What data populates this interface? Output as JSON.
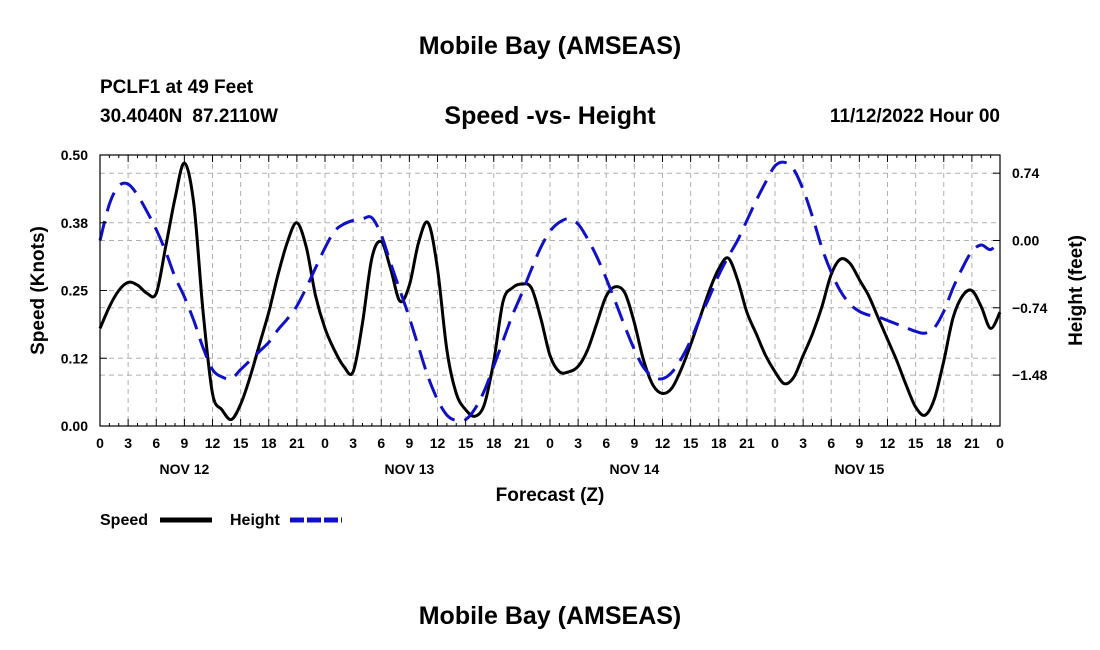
{
  "header": {
    "title": "Mobile Bay (AMSEAS)",
    "station": "PCLF1 at 49 Feet",
    "lat": "30.4040N",
    "lon": "87.2110W",
    "subtitle": "Speed -vs- Height",
    "datetime": "11/12/2022 Hour 00"
  },
  "footer": {
    "title": "Mobile Bay (AMSEAS)"
  },
  "colors": {
    "speed": "#000000",
    "height": "#1010c8",
    "grid": "#b0b0b0"
  },
  "chart_data": {
    "type": "line",
    "title": "Speed -vs- Height",
    "xlabel": "Forecast (Z)",
    "ylabel": "Speed (Knots)",
    "y2label": "Height (feet)",
    "xlim": [
      0,
      96
    ],
    "ylim": [
      0,
      0.5
    ],
    "y2lim": [
      -2.04,
      0.94
    ],
    "grid": true,
    "legend_position": "bottom-left",
    "x_ticks": [
      0,
      3,
      6,
      9,
      12,
      15,
      18,
      21,
      24,
      27,
      30,
      33,
      36,
      39,
      42,
      45,
      48,
      51,
      54,
      57,
      60,
      63,
      66,
      69,
      72,
      75,
      78,
      81,
      84,
      87,
      90,
      93,
      96
    ],
    "x_tick_labels": [
      "0",
      "3",
      "6",
      "9",
      "12",
      "15",
      "18",
      "21",
      "0",
      "3",
      "6",
      "9",
      "12",
      "15",
      "18",
      "21",
      "0",
      "3",
      "6",
      "9",
      "12",
      "15",
      "18",
      "21",
      "0",
      "3",
      "6",
      "9",
      "12",
      "15",
      "18",
      "21",
      "0"
    ],
    "date_labels": [
      {
        "label": "NOV 12",
        "x": 9
      },
      {
        "label": "NOV 13",
        "x": 33
      },
      {
        "label": "NOV 14",
        "x": 57
      },
      {
        "label": "NOV 15",
        "x": 81
      }
    ],
    "y_ticks": [
      0,
      0.125,
      0.25,
      0.375,
      0.5
    ],
    "y_tick_labels": [
      "0.00",
      "0.12",
      "0.25",
      "0.38",
      "0.50"
    ],
    "y2_ticks": [
      0.74,
      0.0,
      -0.74,
      -1.48
    ],
    "y2_tick_labels": [
      "0.74",
      "0.00",
      "−0.74",
      "−1.48"
    ],
    "series": [
      {
        "name": "Speed",
        "axis": "left",
        "x": [
          0,
          1,
          2,
          3,
          4,
          5,
          6,
          7,
          8,
          9,
          10,
          11,
          12,
          13,
          14,
          15,
          16,
          17,
          18,
          19,
          20,
          21,
          22,
          23,
          24,
          25,
          26,
          27,
          28,
          29,
          30,
          31,
          32,
          33,
          34,
          35,
          36,
          37,
          38,
          39,
          40,
          41,
          42,
          43,
          44,
          45,
          46,
          47,
          48,
          49,
          50,
          51,
          52,
          53,
          54,
          55,
          56,
          57,
          58,
          59,
          60,
          61,
          62,
          63,
          64,
          65,
          66,
          67,
          68,
          69,
          70,
          71,
          72,
          73,
          74,
          75,
          76,
          77,
          78,
          79,
          80,
          81,
          82,
          83,
          84,
          85,
          86,
          87,
          88,
          89,
          90,
          91,
          92,
          93,
          94,
          95,
          96
        ],
        "values": [
          0.18,
          0.22,
          0.25,
          0.265,
          0.26,
          0.245,
          0.245,
          0.33,
          0.42,
          0.485,
          0.41,
          0.21,
          0.06,
          0.03,
          0.012,
          0.04,
          0.09,
          0.15,
          0.21,
          0.28,
          0.34,
          0.375,
          0.33,
          0.24,
          0.18,
          0.14,
          0.11,
          0.1,
          0.19,
          0.31,
          0.34,
          0.29,
          0.23,
          0.26,
          0.34,
          0.375,
          0.29,
          0.14,
          0.06,
          0.03,
          0.018,
          0.04,
          0.12,
          0.23,
          0.255,
          0.262,
          0.255,
          0.2,
          0.13,
          0.1,
          0.1,
          0.11,
          0.14,
          0.19,
          0.24,
          0.257,
          0.245,
          0.19,
          0.12,
          0.075,
          0.06,
          0.07,
          0.105,
          0.15,
          0.2,
          0.25,
          0.29,
          0.31,
          0.27,
          0.21,
          0.17,
          0.13,
          0.1,
          0.078,
          0.09,
          0.13,
          0.17,
          0.22,
          0.28,
          0.308,
          0.3,
          0.27,
          0.24,
          0.2,
          0.16,
          0.12,
          0.075,
          0.035,
          0.02,
          0.05,
          0.12,
          0.2,
          0.24,
          0.25,
          0.22,
          0.18,
          0.21
        ]
      },
      {
        "name": "Height",
        "axis": "right",
        "x": [
          0,
          1,
          2,
          3,
          4,
          5,
          6,
          7,
          8,
          9,
          10,
          11,
          12,
          13,
          14,
          15,
          16,
          17,
          18,
          19,
          20,
          21,
          22,
          23,
          24,
          25,
          26,
          27,
          28,
          29,
          30,
          31,
          32,
          33,
          34,
          35,
          36,
          37,
          38,
          39,
          40,
          41,
          42,
          43,
          44,
          45,
          46,
          47,
          48,
          49,
          50,
          51,
          52,
          53,
          54,
          55,
          56,
          57,
          58,
          59,
          60,
          61,
          62,
          63,
          64,
          65,
          66,
          67,
          68,
          69,
          70,
          71,
          72,
          73,
          74,
          75,
          76,
          77,
          78,
          79,
          80,
          81,
          82,
          83,
          84,
          85,
          86,
          87,
          88,
          89,
          90,
          91,
          92,
          93,
          94,
          95,
          96
        ],
        "values": [
          0.0,
          0.4,
          0.6,
          0.62,
          0.5,
          0.32,
          0.12,
          -0.12,
          -0.4,
          -0.62,
          -0.88,
          -1.18,
          -1.42,
          -1.5,
          -1.52,
          -1.42,
          -1.32,
          -1.22,
          -1.12,
          -0.98,
          -0.86,
          -0.72,
          -0.52,
          -0.3,
          -0.08,
          0.1,
          0.18,
          0.22,
          0.24,
          0.25,
          0.06,
          -0.25,
          -0.55,
          -0.85,
          -1.18,
          -1.5,
          -1.75,
          -1.92,
          -1.98,
          -1.97,
          -1.85,
          -1.65,
          -1.38,
          -1.1,
          -0.82,
          -0.58,
          -0.32,
          -0.08,
          0.1,
          0.2,
          0.24,
          0.18,
          0.02,
          -0.18,
          -0.42,
          -0.68,
          -0.95,
          -1.2,
          -1.4,
          -1.5,
          -1.52,
          -1.45,
          -1.3,
          -1.1,
          -0.85,
          -0.62,
          -0.38,
          -0.18,
          0.0,
          0.22,
          0.44,
          0.64,
          0.82,
          0.86,
          0.78,
          0.56,
          0.26,
          -0.08,
          -0.35,
          -0.56,
          -0.7,
          -0.78,
          -0.82,
          -0.84,
          -0.88,
          -0.92,
          -0.96,
          -1.0,
          -1.02,
          -0.96,
          -0.78,
          -0.52,
          -0.3,
          -0.12,
          -0.05,
          -0.1,
          0.0
        ]
      }
    ],
    "legend": [
      {
        "label": "Speed",
        "color": "#000000",
        "style": "solid"
      },
      {
        "label": "Height",
        "color": "#1010c8",
        "style": "dashed"
      }
    ]
  }
}
